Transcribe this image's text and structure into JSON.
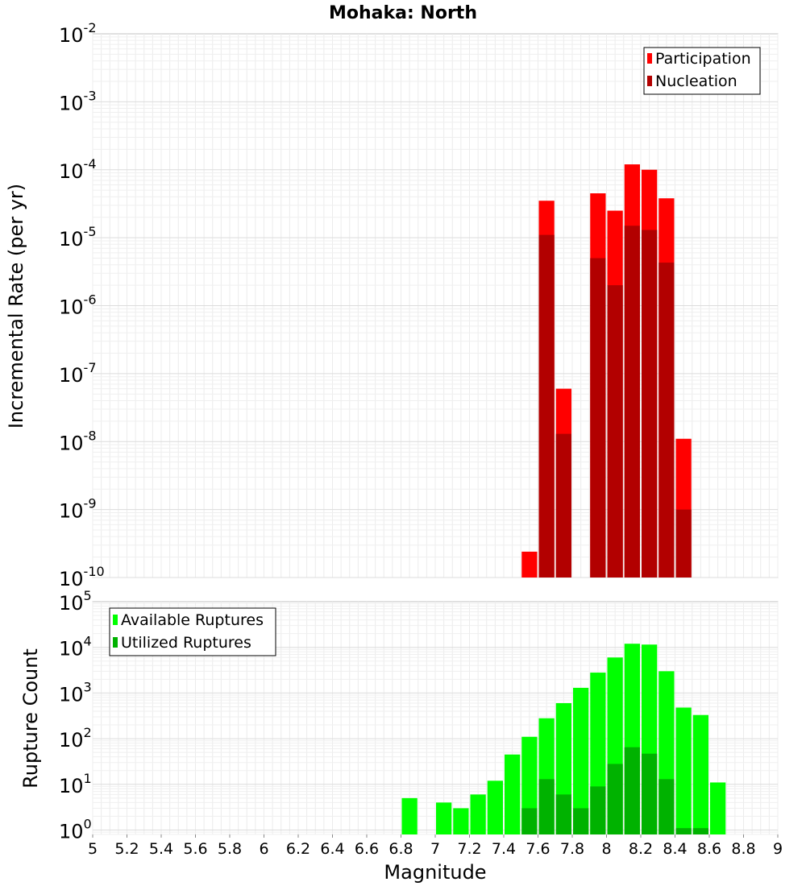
{
  "chart_data": [
    {
      "type": "bar",
      "title": "Mohaka: North",
      "xlabel": "",
      "ylabel": "Incremental Rate (per yr)",
      "yscale": "log",
      "ylim": [
        1e-10,
        0.01
      ],
      "xlim": [
        5,
        9
      ],
      "grid": true,
      "legend_position": "top-right",
      "y_tick_labels": [
        {
          "base": "10",
          "exp": "-2"
        },
        {
          "base": "10",
          "exp": "-3"
        },
        {
          "base": "10",
          "exp": "-4"
        },
        {
          "base": "10",
          "exp": "-5"
        },
        {
          "base": "10",
          "exp": "-6"
        },
        {
          "base": "10",
          "exp": "-7"
        },
        {
          "base": "10",
          "exp": "-8"
        },
        {
          "base": "10",
          "exp": "-9"
        },
        {
          "base": "10",
          "exp": "-10"
        }
      ],
      "series": [
        {
          "name": "Participation",
          "color": "#ff0000",
          "x": [
            7.55,
            7.65,
            7.75,
            7.95,
            8.05,
            8.15,
            8.25,
            8.35,
            8.45
          ],
          "values": [
            2.4e-10,
            3.5e-05,
            6e-08,
            4.5e-05,
            2.5e-05,
            0.00012,
            0.0001,
            3.8e-05,
            1.1e-08
          ]
        },
        {
          "name": "Nucleation",
          "color": "#b20000",
          "x": [
            7.65,
            7.75,
            7.95,
            8.05,
            8.15,
            8.25,
            8.35,
            8.45
          ],
          "values": [
            1.1e-05,
            1.3e-08,
            5e-06,
            2e-06,
            1.5e-05,
            1.3e-05,
            4.3e-06,
            1e-09
          ]
        }
      ]
    },
    {
      "type": "bar",
      "title": "",
      "xlabel": "Magnitude",
      "ylabel": "Rupture Count",
      "yscale": "log",
      "ylim": [
        0.8,
        100000
      ],
      "xlim": [
        5,
        9
      ],
      "grid": true,
      "legend_position": "top-left",
      "x_ticks": [
        "5",
        "5.2",
        "5.4",
        "5.6",
        "5.8",
        "6",
        "6.2",
        "6.4",
        "6.6",
        "6.8",
        "7",
        "7.2",
        "7.4",
        "7.6",
        "7.8",
        "8",
        "8.2",
        "8.4",
        "8.6",
        "8.8",
        "9"
      ],
      "y_tick_labels": [
        {
          "base": "10",
          "exp": "5"
        },
        {
          "base": "10",
          "exp": "4"
        },
        {
          "base": "10",
          "exp": "3"
        },
        {
          "base": "10",
          "exp": "2"
        },
        {
          "base": "10",
          "exp": "1"
        },
        {
          "base": "10",
          "exp": "0"
        }
      ],
      "series": [
        {
          "name": "Available Ruptures",
          "color": "#00ff00",
          "x": [
            6.85,
            7.05,
            7.15,
            7.25,
            7.35,
            7.45,
            7.55,
            7.65,
            7.75,
            7.85,
            7.95,
            8.05,
            8.15,
            8.25,
            8.35,
            8.45,
            8.55,
            8.65
          ],
          "values": [
            5,
            4,
            3,
            6,
            12,
            45,
            110,
            280,
            600,
            1300,
            2800,
            6000,
            12000,
            11500,
            3000,
            480,
            330,
            11
          ]
        },
        {
          "name": "Utilized Ruptures",
          "color": "#00b200",
          "x": [
            7.55,
            7.65,
            7.75,
            7.85,
            7.95,
            8.05,
            8.15,
            8.25,
            8.35,
            8.45,
            8.55
          ],
          "values": [
            3,
            13,
            6,
            3,
            9,
            28,
            65,
            47,
            13,
            1.1,
            1.1
          ]
        }
      ]
    }
  ]
}
